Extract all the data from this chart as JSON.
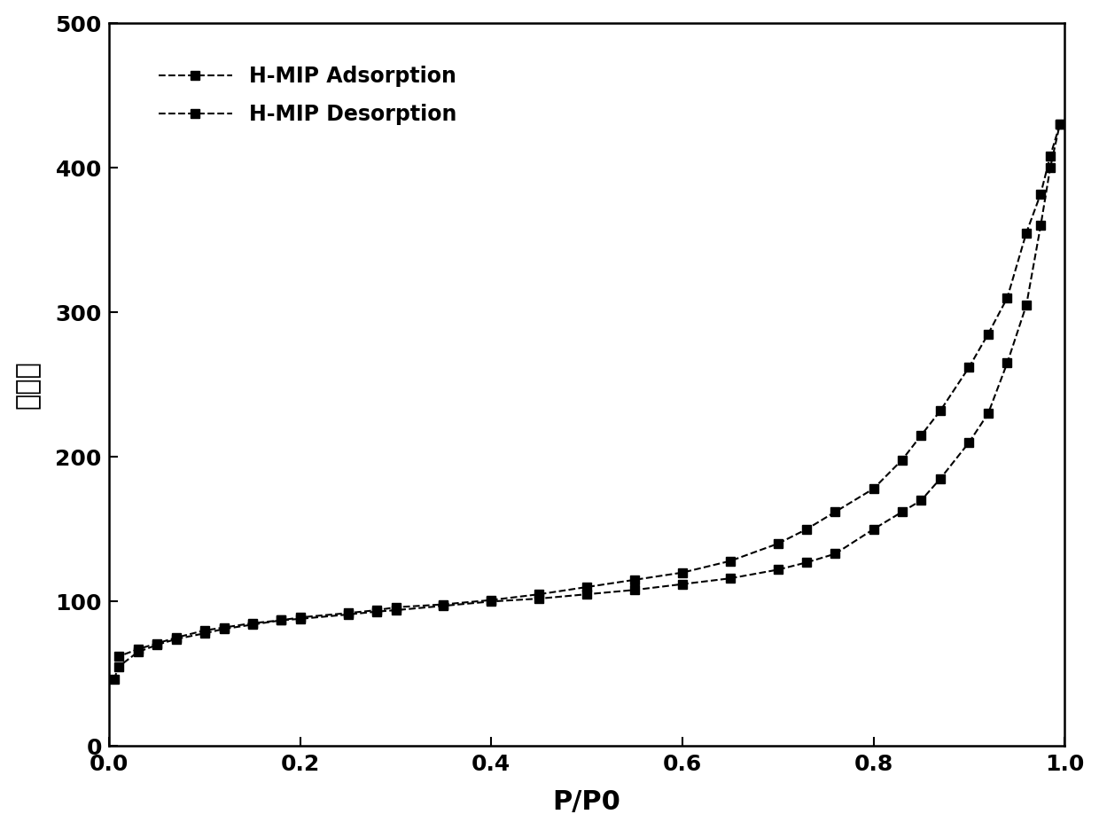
{
  "adsorption_x": [
    0.005,
    0.01,
    0.03,
    0.05,
    0.07,
    0.1,
    0.12,
    0.15,
    0.18,
    0.2,
    0.25,
    0.28,
    0.3,
    0.35,
    0.4,
    0.45,
    0.5,
    0.55,
    0.6,
    0.65,
    0.7,
    0.73,
    0.76,
    0.8,
    0.83,
    0.85,
    0.87,
    0.9,
    0.92,
    0.94,
    0.96,
    0.975,
    0.985,
    0.995
  ],
  "adsorption_y": [
    46,
    55,
    65,
    70,
    74,
    78,
    81,
    84,
    87,
    88,
    91,
    93,
    94,
    97,
    100,
    102,
    105,
    108,
    112,
    116,
    122,
    127,
    133,
    150,
    162,
    170,
    185,
    210,
    230,
    265,
    305,
    360,
    400,
    430
  ],
  "desorption_x": [
    0.995,
    0.985,
    0.975,
    0.96,
    0.94,
    0.92,
    0.9,
    0.87,
    0.85,
    0.83,
    0.8,
    0.76,
    0.73,
    0.7,
    0.65,
    0.6,
    0.55,
    0.5,
    0.45,
    0.4,
    0.35,
    0.3,
    0.28,
    0.25,
    0.2,
    0.18,
    0.15,
    0.12,
    0.1,
    0.07,
    0.05,
    0.03,
    0.01
  ],
  "desorption_y": [
    430,
    408,
    382,
    355,
    310,
    285,
    262,
    232,
    215,
    198,
    178,
    162,
    150,
    140,
    128,
    120,
    115,
    110,
    105,
    101,
    98,
    96,
    94,
    92,
    89,
    87,
    85,
    82,
    80,
    75,
    71,
    67,
    62
  ],
  "xlabel": "P/P0",
  "ylabel": "吸附量",
  "ylim": [
    0,
    500
  ],
  "xlim": [
    0.0,
    1.0
  ],
  "yticks": [
    0,
    100,
    200,
    300,
    400,
    500
  ],
  "xticks": [
    0.0,
    0.2,
    0.4,
    0.6,
    0.8,
    1.0
  ],
  "line_color": "#000000",
  "marker": "s",
  "markersize": 7,
  "linewidth": 1.5,
  "linestyle": "--",
  "legend_adsorption": "H-MIP Adsorption",
  "legend_desorption": "H-MIP Desorption",
  "xlabel_fontsize": 22,
  "ylabel_fontsize": 22,
  "tick_fontsize": 18,
  "legend_fontsize": 17,
  "background_color": "#ffffff"
}
